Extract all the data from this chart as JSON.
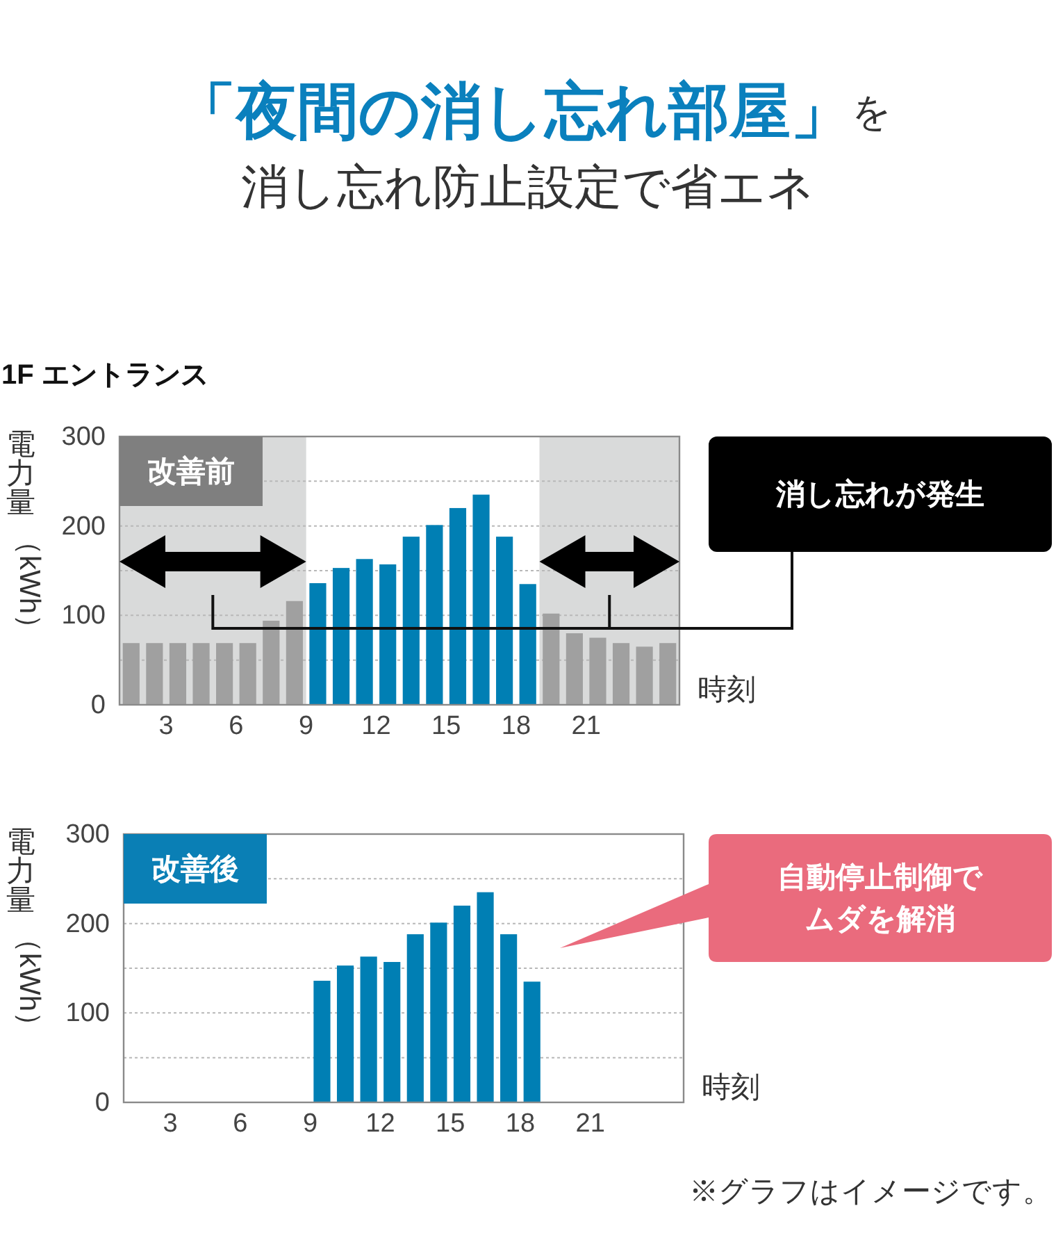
{
  "chart_data": [
    {
      "type": "bar",
      "title": "**「夜間の消し忘れ部屋」**を",
      "subtitle": "消し忘れ防止設定で省エネ",
      "xlabel": "時刻",
      "ylabel": "電力量（kWh）",
      "x": [
        1.5,
        2.5,
        3.5,
        4.5,
        5.5,
        6.5,
        7.5,
        8.5,
        9.5,
        10.5,
        11.5,
        12.5,
        13.5,
        14.5,
        15.5,
        16.5,
        17.5,
        18.5,
        19.5,
        20.5,
        21.5,
        22.5,
        23.5,
        24.5
      ],
      "values": [
        69,
        69,
        69,
        69,
        69,
        69,
        94,
        116,
        136,
        153,
        163,
        157,
        188,
        201,
        220,
        235,
        188,
        135,
        102,
        80,
        75,
        69,
        65,
        69
      ],
      "colors": [
        "#a0a0a0",
        "#a0a0a0",
        "#a0a0a0",
        "#a0a0a0",
        "#a0a0a0",
        "#a0a0a0",
        "#a0a0a0",
        "#a0a0a0",
        "#007fb4",
        "#007fb4",
        "#007fb4",
        "#007fb4",
        "#007fb4",
        "#007fb4",
        "#007fb4",
        "#007fb4",
        "#007fb4",
        "#007fb4",
        "#a0a0a0",
        "#a0a0a0",
        "#a0a0a0",
        "#a0a0a0",
        "#a0a0a0",
        "#a0a0a0"
      ],
      "xlim": [
        1,
        25
      ],
      "ylim": [
        0,
        300
      ],
      "xticks": [
        3,
        6,
        9,
        12,
        15,
        18,
        21
      ],
      "yticks": [
        0,
        {
          "value": 50,
          "label": null
        },
        100,
        {
          "value": 150,
          "label": null
        },
        200,
        {
          "value": 250,
          "label": null
        },
        300
      ],
      "grid": "y",
      "bands": [
        {
          "axis": "x",
          "from": 1,
          "to": 9,
          "color": "#d9dada"
        },
        {
          "axis": "x",
          "from": 19,
          "to": 25,
          "color": "#d9dada"
        }
      ],
      "annotations": [
        "1F エントランス",
        "改善前",
        "消し忘れが発生"
      ]
    },
    {
      "type": "bar",
      "xlabel": "時刻",
      "ylabel": "電力量（kWh）",
      "x": [
        9.5,
        10.5,
        11.5,
        12.5,
        13.5,
        14.5,
        15.5,
        16.5,
        17.5,
        18.5
      ],
      "values": [
        136,
        153,
        163,
        157,
        188,
        201,
        220,
        235,
        188,
        135
      ],
      "color": "#007fb4",
      "xlim": [
        1,
        25
      ],
      "ylim": [
        0,
        300
      ],
      "xticks": [
        3,
        6,
        9,
        12,
        15,
        18,
        21
      ],
      "yticks": [
        0,
        {
          "value": 50,
          "label": null
        },
        100,
        {
          "value": 150,
          "label": null
        },
        200,
        {
          "value": 250,
          "label": null
        },
        300
      ],
      "grid": "y",
      "annotations": [
        "改善後",
        "自動停止制御でムダを解消",
        "※グラフはイメージです。"
      ]
    }
  ]
}
